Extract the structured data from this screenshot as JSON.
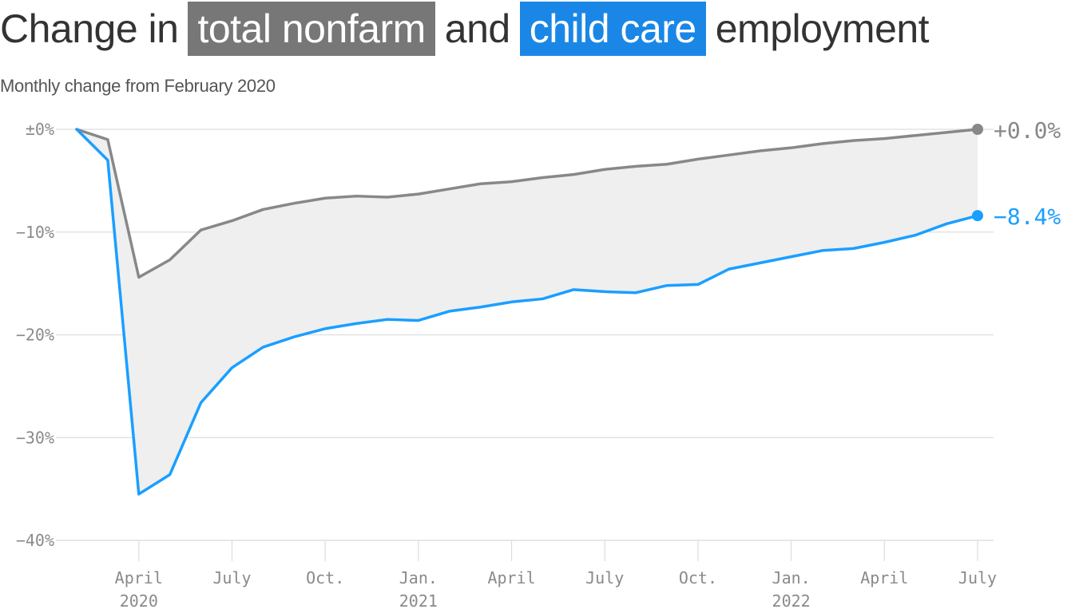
{
  "title": {
    "prefix": "Change in",
    "highlight1": "total nonfarm",
    "middle": "and",
    "highlight2": "child care",
    "suffix": "employment"
  },
  "subtitle": "Monthly change from February 2020",
  "colors": {
    "total_nonfarm": "#888888",
    "child_care": "#1a9fff",
    "title_box_total": "#777777",
    "title_box_childcare": "#1a87e6",
    "fill": "#efefef",
    "grid": "#dddddd"
  },
  "chart_data": {
    "type": "line",
    "x": [
      "2020-02",
      "2020-03",
      "2020-04",
      "2020-05",
      "2020-06",
      "2020-07",
      "2020-08",
      "2020-09",
      "2020-10",
      "2020-11",
      "2020-12",
      "2021-01",
      "2021-02",
      "2021-03",
      "2021-04",
      "2021-05",
      "2021-06",
      "2021-07",
      "2021-08",
      "2021-09",
      "2021-10",
      "2021-11",
      "2021-12",
      "2022-01",
      "2022-02",
      "2022-03",
      "2022-04",
      "2022-05",
      "2022-06",
      "2022-07"
    ],
    "series": [
      {
        "name": "total nonfarm",
        "values": [
          0,
          -1.0,
          -14.4,
          -12.7,
          -9.8,
          -8.9,
          -7.8,
          -7.2,
          -6.7,
          -6.5,
          -6.6,
          -6.3,
          -5.8,
          -5.3,
          -5.1,
          -4.7,
          -4.4,
          -3.9,
          -3.6,
          -3.4,
          -2.9,
          -2.5,
          -2.1,
          -1.8,
          -1.4,
          -1.1,
          -0.9,
          -0.6,
          -0.3,
          0.0
        ]
      },
      {
        "name": "child care",
        "values": [
          0,
          -3.0,
          -35.5,
          -33.6,
          -26.6,
          -23.2,
          -21.2,
          -20.2,
          -19.4,
          -18.9,
          -18.5,
          -18.6,
          -17.7,
          -17.3,
          -16.8,
          -16.5,
          -15.6,
          -15.8,
          -15.9,
          -15.2,
          -15.1,
          -13.6,
          -13.0,
          -12.4,
          -11.8,
          -11.6,
          -11.0,
          -10.3,
          -9.2,
          -8.4
        ]
      }
    ],
    "ylim": [
      -40,
      0
    ],
    "yticks": [
      {
        "value": 0,
        "label": "±0%"
      },
      {
        "value": -10,
        "label": "−10%"
      },
      {
        "value": -20,
        "label": "−20%"
      },
      {
        "value": -30,
        "label": "−30%"
      },
      {
        "value": -40,
        "label": "−40%"
      }
    ],
    "xticks": [
      {
        "x": "2020-04",
        "line1": "April",
        "line2": "2020"
      },
      {
        "x": "2020-07",
        "line1": "July",
        "line2": ""
      },
      {
        "x": "2020-10",
        "line1": "Oct.",
        "line2": ""
      },
      {
        "x": "2021-01",
        "line1": "Jan.",
        "line2": "2021"
      },
      {
        "x": "2021-04",
        "line1": "April",
        "line2": ""
      },
      {
        "x": "2021-07",
        "line1": "July",
        "line2": ""
      },
      {
        "x": "2021-10",
        "line1": "Oct.",
        "line2": ""
      },
      {
        "x": "2022-01",
        "line1": "Jan.",
        "line2": "2022"
      },
      {
        "x": "2022-04",
        "line1": "April",
        "line2": ""
      },
      {
        "x": "2022-07",
        "line1": "July",
        "line2": ""
      }
    ],
    "end_labels": {
      "total_nonfarm": "+0.0%",
      "child_care": "−8.4%"
    },
    "grid": true
  }
}
